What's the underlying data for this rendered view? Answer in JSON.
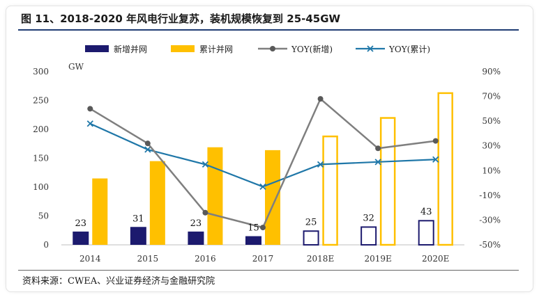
{
  "title": "图 11、2018-2020 年风电行业复苏，装机规模恢复到 25-45GW",
  "source": "资料来源：CWEA、兴业证券经济与金融研究院",
  "colors": {
    "new": "#1c1a6e",
    "cum": "#ffc000",
    "yoy_new": "#7f7f7f",
    "yoy_cum": "#1f77a8",
    "rule": "#1f3c73"
  },
  "chart_data": {
    "type": "bar",
    "categories": [
      "2014",
      "2015",
      "2016",
      "2017",
      "2018E",
      "2019E",
      "2020E"
    ],
    "forecast_from_index": 4,
    "unit_label": "GW",
    "y_left": {
      "min": 0,
      "max": 300,
      "ticks": [
        "0",
        "50",
        "100",
        "150",
        "200",
        "250",
        "300"
      ]
    },
    "y_right": {
      "min": -50,
      "max": 90,
      "ticks": [
        "-50%",
        "-30%",
        "-10%",
        "10%",
        "30%",
        "50%",
        "70%",
        "90%"
      ]
    },
    "legend": [
      "新增并网",
      "累计并网",
      "YOY(新增)",
      "YOY(累计)"
    ],
    "legend_position": "top",
    "series": [
      {
        "name": "新增并网",
        "type": "bar",
        "axis": "left",
        "values": [
          23,
          31,
          23,
          15,
          25,
          32,
          43
        ],
        "data_labels": [
          "23",
          "31",
          "23",
          "15",
          "25",
          "32",
          "43"
        ]
      },
      {
        "name": "累计并网",
        "type": "bar",
        "axis": "left",
        "values": [
          115,
          145,
          169,
          164,
          189,
          221,
          264
        ]
      },
      {
        "name": "YOY(新增)",
        "type": "line",
        "axis": "right",
        "values": [
          60,
          32,
          -24,
          -36,
          68,
          28,
          34
        ]
      },
      {
        "name": "YOY(累计)",
        "type": "line",
        "axis": "right",
        "values": [
          48,
          27,
          15,
          -3,
          15,
          17,
          19
        ]
      }
    ]
  }
}
